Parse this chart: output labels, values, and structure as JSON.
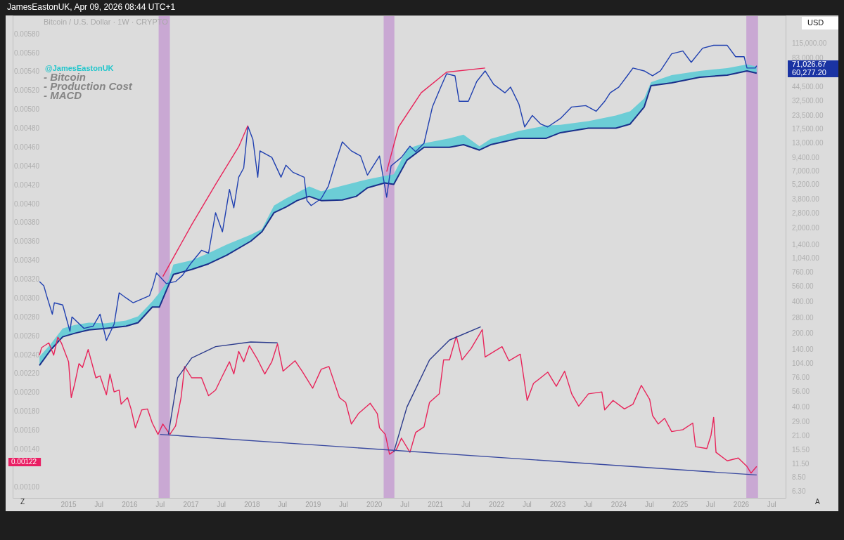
{
  "chart_data": {
    "type": "line",
    "title": "Bitcoin / U.S. Dollar · 1W · CRYPTO",
    "annotations": [
      "JamesEastonUK, Apr 09, 2026 08:44 UTC+1",
      "@JamesEastonUK",
      "- Bitcoin",
      "- Production Cost",
      "- MACD",
      "USD",
      "71,026.67",
      "60,277.20",
      "0.00122",
      "Z",
      "A"
    ],
    "xlim": [
      "2014-02-01",
      "2026-09-27"
    ],
    "xticks": [
      "2015",
      {
        "value": "2015-07",
        "label": "Jul"
      },
      "2016",
      {
        "value": "2016-07",
        "label": "Jul"
      },
      "2017",
      {
        "value": "2017-07",
        "label": "Jul"
      },
      "2018",
      {
        "value": "2018-07",
        "label": "Jul"
      },
      "2019",
      {
        "value": "2019-07",
        "label": "Jul"
      },
      "2020",
      {
        "value": "2020-07",
        "label": "Jul"
      },
      "2021",
      {
        "value": "2021-07",
        "label": "Jul"
      },
      "2022",
      {
        "value": "2022-07",
        "label": "Jul"
      },
      "2023",
      {
        "value": "2023-07",
        "label": "Jul"
      },
      "2024",
      {
        "value": "2024-07",
        "label": "Jul"
      },
      "2025",
      {
        "value": "2025-07",
        "label": "Jul"
      },
      "2026",
      {
        "value": "2026-07",
        "label": "Jul"
      }
    ],
    "ylim": [
      0.00088,
      0.006
    ],
    "yticks": [
      {
        "value": 0.001,
        "label": "0.00100"
      },
      {
        "value": 0.0014,
        "label": "0.00140"
      },
      {
        "value": 0.0016,
        "label": "0.00160"
      },
      {
        "value": 0.0018,
        "label": "0.00180"
      },
      {
        "value": 0.002,
        "label": "0.00200"
      },
      {
        "value": 0.0022,
        "label": "0.00220"
      },
      {
        "value": 0.0024,
        "label": "0.00240"
      },
      {
        "value": 0.0026,
        "label": "0.00260"
      },
      {
        "value": 0.0028,
        "label": "0.00280"
      },
      {
        "value": 0.003,
        "label": "0.00300"
      },
      {
        "value": 0.0032,
        "label": "0.00320"
      },
      {
        "value": 0.0034,
        "label": "0.00340"
      },
      {
        "value": 0.0036,
        "label": "0.00360"
      },
      {
        "value": 0.0038,
        "label": "0.00380"
      },
      {
        "value": 0.004,
        "label": "0.00400"
      },
      {
        "value": 0.0042,
        "label": "0.00420"
      },
      {
        "value": 0.0044,
        "label": "0.00440"
      },
      {
        "value": 0.0046,
        "label": "0.00460"
      },
      {
        "value": 0.0048,
        "label": "0.00480"
      },
      {
        "value": 0.005,
        "label": "0.00500"
      },
      {
        "value": 0.0052,
        "label": "0.00520"
      },
      {
        "value": 0.0054,
        "label": "0.00540"
      },
      {
        "value": 0.0056,
        "label": "0.00560"
      },
      {
        "value": 0.0058,
        "label": "0.00580"
      }
    ],
    "y2lim": [
      5.4,
      214000
    ],
    "y2ticks": [
      {
        "value": 6.3,
        "label": "6.30"
      },
      {
        "value": 8.5,
        "label": "8.50"
      },
      {
        "value": 11.5,
        "label": "11.50"
      },
      {
        "value": 15.5,
        "label": "15.50"
      },
      {
        "value": 21,
        "label": "21.00"
      },
      {
        "value": 29,
        "label": "29.00"
      },
      {
        "value": 40,
        "label": "40.00"
      },
      {
        "value": 56,
        "label": "56.00"
      },
      {
        "value": 76,
        "label": "76.00"
      },
      {
        "value": 104,
        "label": "104.00"
      },
      {
        "value": 140,
        "label": "140.00"
      },
      {
        "value": 200,
        "label": "200.00"
      },
      {
        "value": 280,
        "label": "280.00"
      },
      {
        "value": 400,
        "label": "400.00"
      },
      {
        "value": 560,
        "label": "560.00"
      },
      {
        "value": 760,
        "label": "760.00"
      },
      {
        "value": 1040,
        "label": "1,040.00"
      },
      {
        "value": 1400,
        "label": "1,400.00"
      },
      {
        "value": 2000,
        "label": "2,000.00"
      },
      {
        "value": 2800,
        "label": "2,800.00"
      },
      {
        "value": 3800,
        "label": "3,800.00"
      },
      {
        "value": 5200,
        "label": "5,200.00"
      },
      {
        "value": 7000,
        "label": "7,000.00"
      },
      {
        "value": 9400,
        "label": "9,400.00"
      },
      {
        "value": 13000,
        "label": "13,000.00"
      },
      {
        "value": 17500,
        "label": "17,500.00"
      },
      {
        "value": 23500,
        "label": "23,500.00"
      },
      {
        "value": 32500,
        "label": "32,500.00"
      },
      {
        "value": 44500,
        "label": "44,500.00"
      },
      {
        "value": 83000,
        "label": "83,000.00"
      },
      {
        "value": 115000,
        "label": "115,000.00"
      }
    ],
    "log": "y2",
    "grid": false,
    "legend": false,
    "marker": "none",
    "bands": [
      {
        "axis": "x",
        "from": "2016-06-22",
        "to": "2016-08-28",
        "color": "#c9a8d3"
      },
      {
        "axis": "x",
        "from": "2020-02-26",
        "to": "2020-04-30",
        "color": "#c9a8d3"
      },
      {
        "axis": "x",
        "from": "2026-01-31",
        "to": "2026-04-11",
        "color": "#c9a8d3"
      }
    ],
    "series": [
      {
        "type": "line",
        "axis": "y2",
        "color": "#1a2f8a",
        "x": [
          "2014-07-11",
          "2014-09-17",
          "2014-11-27",
          "2015-02-07",
          "2015-05-02",
          "2015-08-07",
          "2015-12-10",
          "2016-02-20",
          "2016-05-15",
          "2016-06-26",
          "2016-08-19",
          "2016-09-18",
          "2017-01-05",
          "2017-04-16",
          "2017-08-03",
          "2017-12-24",
          "2018-03-01",
          "2018-05-12",
          "2018-07-22",
          "2018-09-27",
          "2018-12-08",
          "2019-02-18",
          "2019-06-24",
          "2019-09-15",
          "2019-11-21",
          "2020-03-03",
          "2020-04-26",
          "2020-07-14",
          "2020-10-24",
          "2021-03-25",
          "2021-06-17",
          "2021-09-20",
          "2021-11-26",
          "2022-05-14",
          "2022-10-24",
          "2023-01-17",
          "2023-07-03",
          "2023-12-14",
          "2024-03-08",
          "2024-05-31",
          "2024-07-11",
          "2024-11-11",
          "2025-04-28",
          "2025-10-09",
          "2026-02-04",
          "2026-04-03"
        ],
        "values": [
          100,
          141,
          187,
          202,
          218,
          225,
          236,
          255,
          359,
          359,
          573,
          734,
          818,
          926,
          1120,
          1520,
          1870,
          2840,
          3210,
          3700,
          4060,
          3700,
          3750,
          4060,
          4890,
          5450,
          5280,
          8970,
          11900,
          11900,
          12600,
          11200,
          12600,
          14500,
          14500,
          16400,
          18100,
          18100,
          19800,
          28800,
          45900,
          48800,
          55300,
          57900,
          63500,
          60300
        ],
        "lower": [
          100,
          141,
          187,
          202,
          218,
          225,
          236,
          255,
          359,
          359,
          573,
          734,
          818,
          926,
          1120,
          1520,
          1870,
          2840,
          3210,
          3700,
          4060,
          3700,
          3750,
          4060,
          4890,
          5450,
          5280,
          8970,
          11900,
          11900,
          12600,
          11200,
          12600,
          14500,
          14500,
          16400,
          18100,
          18100,
          19800,
          28800,
          45900,
          48800,
          55300,
          57900,
          63500,
          60300
        ],
        "upper": [
          121,
          160,
          225,
          243,
          255,
          251,
          267,
          293,
          406,
          490,
          648,
          912,
          1000,
          1170,
          1410,
          1750,
          1980,
          3320,
          3870,
          4390,
          5050,
          4530,
          5120,
          5540,
          5890,
          6370,
          6570,
          11500,
          13000,
          14500,
          15700,
          12200,
          14300,
          17000,
          19200,
          19500,
          21100,
          23900,
          26200,
          34700,
          49600,
          57900,
          63500,
          67600,
          73100,
          69800
        ]
      },
      {
        "type": "line",
        "axis": "y2",
        "color": "#2040b0",
        "x": [
          "2014-07-11",
          "2014-08-06",
          "2014-08-23",
          "2014-09-26",
          "2014-10-08",
          "2014-11-27",
          "2015-01-09",
          "2015-01-21",
          "2015-04-03",
          "2015-05-27",
          "2015-07-08",
          "2015-08-15",
          "2015-09-30",
          "2015-10-30",
          "2015-12-10",
          "2016-01-22",
          "2016-04-28",
          "2016-05-19",
          "2016-06-09",
          "2016-08-07",
          "2016-10-01",
          "2016-11-12",
          "2017-01-05",
          "2017-03-05",
          "2017-04-16",
          "2017-05-28",
          "2017-07-08",
          "2017-08-19",
          "2017-09-14",
          "2017-10-13",
          "2017-11-12",
          "2017-12-07",
          "2018-01-06",
          "2018-02-04",
          "2018-02-17",
          "2018-04-29",
          "2018-06-23",
          "2018-07-22",
          "2018-09-02",
          "2018-11-08",
          "2018-11-25",
          "2018-12-20",
          "2019-02-18",
          "2019-04-01",
          "2019-05-13",
          "2019-06-24",
          "2019-08-17",
          "2019-10-11",
          "2019-11-21",
          "2020-02-01",
          "2020-03-15",
          "2020-04-10",
          "2020-06-11",
          "2020-08-01",
          "2020-09-04",
          "2020-10-24",
          "2020-12-13",
          "2021-02-01",
          "2021-03-08",
          "2021-04-27",
          "2021-05-22",
          "2021-07-16",
          "2021-09-04",
          "2021-10-24",
          "2021-12-14",
          "2022-02-19",
          "2022-03-25",
          "2022-05-14",
          "2022-06-17",
          "2022-08-02",
          "2022-09-21",
          "2022-11-02",
          "2023-01-17",
          "2023-03-25",
          "2023-06-17",
          "2023-08-18",
          "2023-10-08",
          "2023-11-10",
          "2023-12-31",
          "2024-02-20",
          "2024-03-25",
          "2024-05-31",
          "2024-07-20",
          "2024-09-05",
          "2024-11-11",
          "2025-01-17",
          "2025-03-08",
          "2025-05-15",
          "2025-07-20",
          "2025-10-09",
          "2025-11-28",
          "2026-01-18",
          "2026-02-04",
          "2026-03-26",
          "2026-04-03"
        ],
        "values": [
          628,
          573,
          460,
          307,
          394,
          376,
          211,
          289,
          225,
          236,
          307,
          173,
          247,
          490,
          439,
          394,
          460,
          573,
          757,
          600,
          628,
          722,
          955,
          1245,
          1170,
          2840,
          1865,
          4740,
          3160,
          6180,
          7560,
          18900,
          14100,
          6180,
          11000,
          9540,
          6180,
          8040,
          6880,
          6180,
          3700,
          3320,
          3870,
          5050,
          8430,
          13400,
          11000,
          9840,
          6470,
          9840,
          3990,
          7910,
          9540,
          12200,
          10800,
          13000,
          28800,
          44500,
          59700,
          57000,
          32600,
          32600,
          50400,
          63500,
          47300,
          39300,
          44500,
          30600,
          18600,
          23900,
          19800,
          18600,
          22400,
          28800,
          29700,
          26200,
          32600,
          39300,
          44500,
          57000,
          67600,
          63500,
          57000,
          63500,
          92300,
          98200,
          76600,
          104500,
          111200,
          111200,
          86700,
          86700,
          67600,
          67600,
          71000
        ]
      },
      {
        "type": "line",
        "color": "#e8245a",
        "x": [
          "2014-07-11",
          "2014-07-24",
          "2014-09-05",
          "2014-10-04",
          "2014-10-29",
          "2014-11-19",
          "2015-01-01",
          "2015-01-17",
          "2015-02-07",
          "2015-03-04",
          "2015-03-25",
          "2015-04-28",
          "2015-06-13",
          "2015-07-08",
          "2015-08-15",
          "2015-09-05",
          "2015-09-30",
          "2015-10-30",
          "2015-11-11",
          "2015-12-19",
          "2016-01-09",
          "2016-02-04",
          "2016-03-13",
          "2016-04-16",
          "2016-05-15",
          "2016-06-18",
          "2016-07-17",
          "2016-08-28",
          "2016-10-01",
          "2016-11-03",
          "2016-11-24",
          "2017-01-05",
          "2017-03-05",
          "2017-04-16",
          "2017-05-28",
          "2017-07-08",
          "2017-08-19",
          "2017-09-14",
          "2017-10-13",
          "2017-11-12",
          "2017-12-16",
          "2018-02-04",
          "2018-03-18",
          "2018-04-29",
          "2018-06-02",
          "2018-07-05",
          "2018-09-15",
          "2018-10-27",
          "2018-12-29",
          "2019-02-18",
          "2019-04-05",
          "2019-06-07",
          "2019-07-14",
          "2019-08-17",
          "2019-09-28",
          "2019-12-08",
          "2020-01-19",
          "2020-02-01",
          "2020-03-07",
          "2020-04-01",
          "2020-05-12",
          "2020-06-11",
          "2020-08-01",
          "2020-09-04",
          "2020-10-24",
          "2020-11-26",
          "2021-01-23",
          "2021-02-18",
          "2021-03-25",
          "2021-05-05",
          "2021-06-08",
          "2021-08-01",
          "2021-10-07",
          "2021-10-24",
          "2022-02-02",
          "2022-03-15",
          "2022-05-22",
          "2022-07-02",
          "2022-08-09",
          "2022-11-02",
          "2022-12-23",
          "2023-02-11",
          "2023-03-25",
          "2023-05-06",
          "2023-07-03",
          "2023-09-21",
          "2023-10-08",
          "2023-11-27",
          "2024-02-03",
          "2024-03-25",
          "2024-05-14",
          "2024-07-03",
          "2024-07-20",
          "2024-08-23",
          "2024-09-30",
          "2024-11-11",
          "2025-01-17",
          "2025-03-17",
          "2025-04-03",
          "2025-06-09",
          "2025-07-04",
          "2025-07-20",
          "2025-08-03",
          "2025-10-09",
          "2025-12-14",
          "2026-02-04",
          "2026-02-28",
          "2026-04-03"
        ],
        "values": [
          0.0024,
          0.00248,
          0.00253,
          0.0024,
          0.00259,
          0.00253,
          0.00233,
          0.00195,
          0.0021,
          0.00231,
          0.00227,
          0.00246,
          0.00216,
          0.00218,
          0.00198,
          0.0022,
          0.00201,
          0.00203,
          0.00188,
          0.00195,
          0.00183,
          0.00163,
          0.00182,
          0.00183,
          0.00168,
          0.00156,
          0.00167,
          0.00156,
          0.00165,
          0.00195,
          0.00228,
          0.00216,
          0.00216,
          0.00197,
          0.00203,
          0.00218,
          0.00233,
          0.0022,
          0.00244,
          0.00233,
          0.0025,
          0.00235,
          0.0022,
          0.00233,
          0.00252,
          0.00223,
          0.00234,
          0.00223,
          0.00205,
          0.00225,
          0.00228,
          0.00195,
          0.0019,
          0.00167,
          0.00178,
          0.00189,
          0.00178,
          0.00163,
          0.00156,
          0.00135,
          0.0014,
          0.00152,
          0.00137,
          0.00158,
          0.00164,
          0.0019,
          0.00199,
          0.00235,
          0.00235,
          0.0026,
          0.00235,
          0.00247,
          0.00267,
          0.00238,
          0.00249,
          0.00234,
          0.00241,
          0.00192,
          0.0021,
          0.00222,
          0.00207,
          0.00223,
          0.00199,
          0.00186,
          0.00199,
          0.00201,
          0.00182,
          0.00192,
          0.00183,
          0.00188,
          0.00208,
          0.00193,
          0.00176,
          0.00167,
          0.00173,
          0.00159,
          0.00161,
          0.00168,
          0.00143,
          0.00141,
          0.00155,
          0.00174,
          0.00137,
          0.00128,
          0.00131,
          0.00122,
          0.00115,
          0.00122
        ]
      },
      {
        "type": "line",
        "axis": "y2",
        "color": "#e8245a",
        "x": [
          "2016-07-17",
          "2017-01-05",
          "2017-05-28",
          "2017-10-13",
          "2017-12-07"
        ],
        "values": [
          700,
          2180,
          5280,
          12050,
          19200
        ]
      },
      {
        "type": "line",
        "axis": "y2",
        "color": "#e8245a",
        "x": [
          "2020-03-15",
          "2020-05-25",
          "2020-10-07",
          "2021-03-08",
          "2021-10-24"
        ],
        "values": [
          6990,
          18600,
          39300,
          61700,
          67600
        ]
      },
      {
        "type": "line",
        "color": "#2b3a8c",
        "x": [
          "2016-08-19",
          "2016-10-13",
          "2017-01-05",
          "2017-05-28",
          "2017-12-24",
          "2018-06-02"
        ],
        "values": [
          0.00156,
          0.00216,
          0.00237,
          0.00249,
          0.00254,
          0.00253
        ]
      },
      {
        "type": "line",
        "color": "#2b3a8c",
        "x": [
          "2020-04-26",
          "2020-07-14",
          "2020-11-26",
          "2021-03-25",
          "2021-09-28"
        ],
        "values": [
          0.00137,
          0.00185,
          0.00235,
          0.00256,
          0.0027
        ]
      },
      {
        "type": "line",
        "color": "#3a4aa0",
        "x": [
          "2016-06-30",
          "2026-04-03"
        ],
        "values": [
          0.00156,
          0.00113
        ]
      }
    ]
  }
}
